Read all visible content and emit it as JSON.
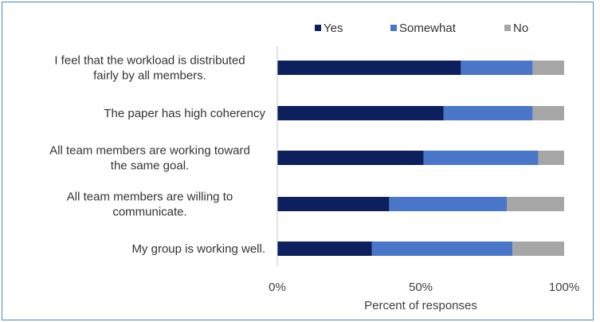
{
  "chart_data": {
    "type": "bar",
    "orientation": "horizontal",
    "stacked": true,
    "categories": [
      [
        "I feel that the workload is distributed",
        "fairly by all members."
      ],
      [
        "The paper has high coherency"
      ],
      [
        "All team members are working toward",
        "the same goal."
      ],
      [
        "All team members are willing to",
        "communicate."
      ],
      [
        "My group is working well."
      ]
    ],
    "series": [
      {
        "name": "Yes",
        "color": "#0d1f5c",
        "values": [
          64,
          58,
          51,
          39,
          33
        ]
      },
      {
        "name": "Somewhat",
        "color": "#4a76c9",
        "values": [
          25,
          31,
          40,
          41,
          49
        ]
      },
      {
        "name": "No",
        "color": "#a6a6a6",
        "values": [
          11,
          11,
          9,
          20,
          18
        ]
      }
    ],
    "xlabel": "Percent of responses",
    "xlim": [
      0,
      100
    ],
    "xticks": [
      "0%",
      "50%",
      "100%"
    ],
    "legend_position": "top",
    "grid": false
  }
}
